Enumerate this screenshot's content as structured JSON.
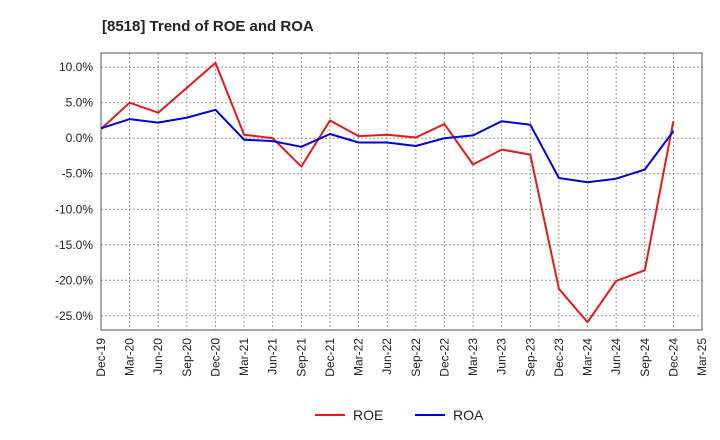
{
  "chart_data": {
    "type": "line",
    "title": "[8518]  Trend of ROE and ROA",
    "xlabel": "",
    "ylabel": "",
    "x": [
      "Dec-19",
      "Mar-20",
      "Jun-20",
      "Sep-20",
      "Dec-20",
      "Mar-21",
      "Jun-21",
      "Sep-21",
      "Dec-21",
      "Mar-22",
      "Jun-22",
      "Sep-22",
      "Dec-22",
      "Mar-23",
      "Jun-23",
      "Sep-23",
      "Dec-23",
      "Mar-24",
      "Jun-24",
      "Sep-24",
      "Dec-24",
      "Mar-25"
    ],
    "ylim": [
      -27,
      12
    ],
    "yticks": [
      10,
      5,
      0,
      -5,
      -10,
      -15,
      -20,
      -25
    ],
    "ytick_labels": [
      "10.0%",
      "5.0%",
      "0.0%",
      "-5.0%",
      "-10.0%",
      "-15.0%",
      "-20.0%",
      "-25.0%"
    ],
    "grid": true,
    "legend_position": "bottom-center",
    "series": [
      {
        "name": "ROE",
        "color": "#e41a1c",
        "values": [
          1.3,
          5.0,
          3.6,
          7.1,
          10.6,
          0.5,
          0.0,
          -4.0,
          2.5,
          0.3,
          0.5,
          0.1,
          2.0,
          -3.7,
          -1.6,
          -2.3,
          -21.2,
          -25.9,
          -20.1,
          -18.6,
          2.4,
          null
        ]
      },
      {
        "name": "ROA",
        "color": "#0000dd",
        "values": [
          1.4,
          2.7,
          2.2,
          2.9,
          4.0,
          -0.2,
          -0.4,
          -1.2,
          0.6,
          -0.6,
          -0.6,
          -1.1,
          0.0,
          0.4,
          2.4,
          1.9,
          -5.6,
          -6.2,
          -5.7,
          -4.4,
          1.0,
          null
        ]
      }
    ]
  }
}
